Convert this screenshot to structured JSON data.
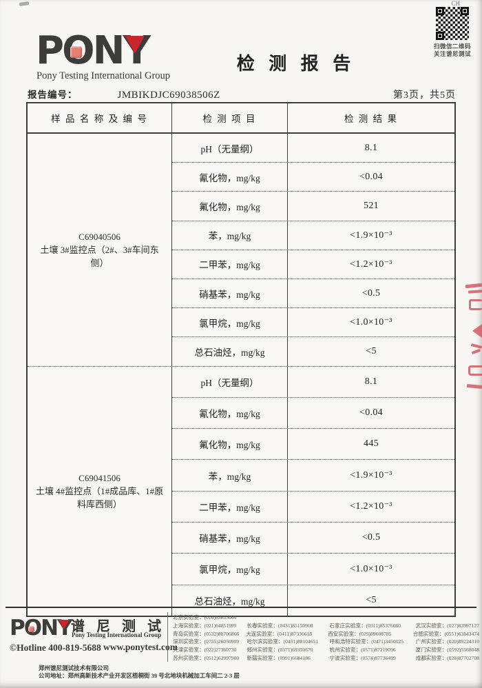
{
  "page": {
    "corner_mark": "CH",
    "qr": {
      "caption_line1": "扫微信二维码",
      "caption_line2": "关注谱尼测试"
    },
    "logo": {
      "text": "PONY",
      "subtitle": "Pony Testing International Group"
    },
    "title": "检 测 报 告",
    "report_no_label": "报告编号：",
    "report_no": "JMBIKDJC69038506Z",
    "page_info": "第3页，共5页"
  },
  "table": {
    "headers": {
      "sample": "样 品 名 称 及 编 号",
      "item": "检 测 项 目",
      "result": "检 测 结 果"
    },
    "sections": [
      {
        "sample_code": "C69040506",
        "sample_name": "土壤 3#监控点（2#、3#车间东侧）",
        "rows": [
          {
            "item": "pH（无量纲）",
            "result": "8.1"
          },
          {
            "item": "氰化物，mg/kg",
            "result": "<0.04"
          },
          {
            "item": "氟化物，mg/kg",
            "result": "521"
          },
          {
            "item": "苯，mg/kg",
            "result": "<1.9×10⁻³"
          },
          {
            "item": "二甲苯，mg/kg",
            "result": "<1.2×10⁻³"
          },
          {
            "item": "硝基苯，mg/kg",
            "result": "<0.5"
          },
          {
            "item": "氯甲烷，mg/kg",
            "result": "<1.0×10⁻³"
          },
          {
            "item": "总石油烃，mg/kg",
            "result": "<5"
          }
        ]
      },
      {
        "sample_code": "C69041506",
        "sample_name": "土壤 4#监控点（1#成品库、1#原料库西侧）",
        "rows": [
          {
            "item": "pH（无量纲）",
            "result": "8.1"
          },
          {
            "item": "氰化物，mg/kg",
            "result": "<0.04"
          },
          {
            "item": "氟化物，mg/kg",
            "result": "445"
          },
          {
            "item": "苯，mg/kg",
            "result": "<1.9×10⁻³"
          },
          {
            "item": "二甲苯，mg/kg",
            "result": "<1.2×10⁻³"
          },
          {
            "item": "硝基苯，mg/kg",
            "result": "<0.5"
          },
          {
            "item": "氯甲烷，mg/kg",
            "result": "<1.0×10⁻³"
          },
          {
            "item": "总石油烃，mg/kg",
            "result": "<5"
          }
        ]
      }
    ]
  },
  "footer": {
    "logo_text": "PONY",
    "logo_cn": "谱 尼 测 试",
    "logo_sub": "Pony Testing International Group",
    "hotline": "©Hotline 400-819-5688",
    "website": "www.ponytest.com",
    "labs": [
      [
        "北京实验室：(010)83055000",
        "",
        "",
        ""
      ],
      [
        "上海实验室：(021)64851999",
        "长春实验室：(0431)85150908",
        "石家庄实验室：(0311)85376660",
        "武汉实验室：(027)83997127"
      ],
      [
        "青岛实验室：(0532)88706866",
        "大连实验室：(0411)87336618",
        "西安实验室：(029)89608785",
        "合肥实验室：(0551)63843474"
      ],
      [
        "深圳实验室：(0755)26050909",
        "哈尔滨实验室：(0451)88104651",
        "呼和浩特实验室：(0471)3450025",
        "广州实验室：(020)89224310"
      ],
      [
        "天津实验室：(022)27360730",
        "郑州实验室：(0371)69350670",
        "杭州实验室：(0571)87219096",
        "厦门实验室：(0592)5568048"
      ],
      [
        "苏州实验室：(0512)62997900",
        "新疆实验室：(0991)6684186",
        "宁波实验室：(0574)87736499",
        "成都实验室：(028)87702708"
      ]
    ],
    "company": "郑州谱尼测试技术有限公司",
    "address": "公司地址：郑州高新技术产业开发区梧桐街 39 号北地块机械加工车间二 2-3 层"
  }
}
